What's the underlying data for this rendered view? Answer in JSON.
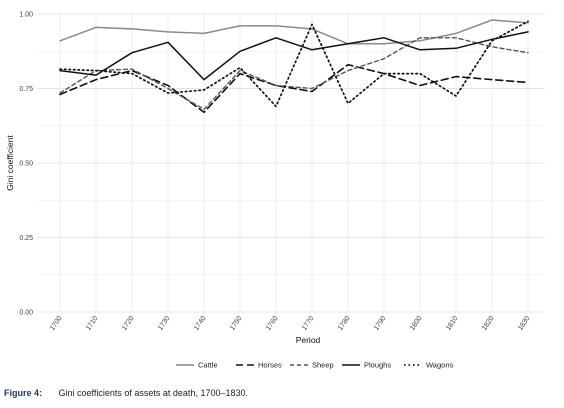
{
  "caption": {
    "label": "Figure 4:",
    "text": "Gini coefficients of assets at death, 1700–1830."
  },
  "chart_data": {
    "type": "line",
    "xlabel": "Period",
    "ylabel": "Gini coefficient",
    "x": [
      1700,
      1710,
      1720,
      1730,
      1740,
      1750,
      1760,
      1770,
      1780,
      1790,
      1800,
      1810,
      1820,
      1830
    ],
    "ylim": [
      0,
      1
    ],
    "yticks": [
      "0.00",
      "0.25",
      "0.50",
      "0.75",
      "1.00"
    ],
    "grid": true,
    "legend_position": "bottom",
    "series": [
      {
        "name": "Cattle",
        "style": "solid-grey",
        "color": "#8a8a8a",
        "values": [
          0.91,
          0.955,
          0.95,
          0.94,
          0.935,
          0.96,
          0.96,
          0.95,
          0.9,
          0.9,
          0.91,
          0.935,
          0.98,
          0.97
        ]
      },
      {
        "name": "Horses",
        "style": "long-dash",
        "color": "#111111",
        "values": [
          0.73,
          0.78,
          0.81,
          0.76,
          0.67,
          0.8,
          0.76,
          0.74,
          0.83,
          0.8,
          0.76,
          0.79,
          0.78,
          0.77
        ]
      },
      {
        "name": "Sheep",
        "style": "dash",
        "color": "#555555",
        "values": [
          0.735,
          0.81,
          0.815,
          0.75,
          0.68,
          0.81,
          0.76,
          0.75,
          0.81,
          0.85,
          0.92,
          0.92,
          0.89,
          0.87
        ]
      },
      {
        "name": "Ploughs",
        "style": "solid-black",
        "color": "#111111",
        "values": [
          0.81,
          0.795,
          0.87,
          0.905,
          0.78,
          0.875,
          0.92,
          0.88,
          0.9,
          0.92,
          0.88,
          0.885,
          0.915,
          0.94
        ]
      },
      {
        "name": "Wagons",
        "style": "dotted",
        "color": "#111111",
        "values": [
          0.815,
          0.81,
          0.8,
          0.735,
          0.745,
          0.82,
          0.69,
          0.965,
          0.7,
          0.8,
          0.8,
          0.725,
          0.91,
          0.975
        ]
      }
    ]
  }
}
